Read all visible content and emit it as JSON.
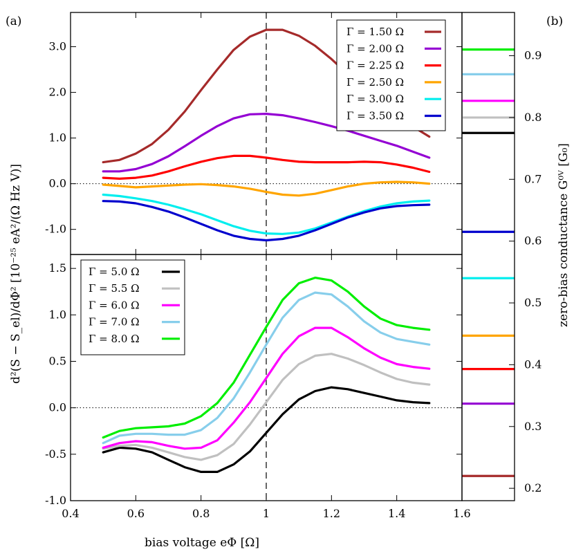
{
  "panel_labels": {
    "a": "(a)",
    "b": "(b)"
  },
  "axis_labels": {
    "x": "bias voltage eΦ [Ω]",
    "y": "d²(S − S_el)/dΦ² [10⁻²⁵ eA²/(Ω Hz V)]",
    "y2": "zero-bias conductance G⁰ⱽ [G₀]"
  },
  "chart_data": [
    {
      "type": "line",
      "name": "top-panel",
      "xlim": [
        0.4,
        1.6
      ],
      "ylim": [
        -1.55,
        3.75
      ],
      "yticks": [
        -1.0,
        0.0,
        1.0,
        2.0,
        3.0
      ],
      "ytick_labels": [
        "-1.0",
        "0.0",
        "1.0",
        "2.0",
        "3.0"
      ],
      "legend_position": "top-right",
      "vline_x": 1.0,
      "x": [
        0.5,
        0.55,
        0.6,
        0.65,
        0.7,
        0.75,
        0.8,
        0.85,
        0.9,
        0.95,
        1.0,
        1.05,
        1.1,
        1.15,
        1.2,
        1.25,
        1.3,
        1.35,
        1.4,
        1.45,
        1.5
      ],
      "series": [
        {
          "name": "Γ = 1.50 Ω",
          "color": "#a52a2a",
          "values": [
            0.47,
            0.52,
            0.66,
            0.87,
            1.18,
            1.58,
            2.05,
            2.5,
            2.93,
            3.22,
            3.37,
            3.37,
            3.24,
            3.02,
            2.73,
            2.4,
            2.05,
            1.72,
            1.45,
            1.25,
            1.03
          ]
        },
        {
          "name": "Γ = 2.00 Ω",
          "color": "#9400d3",
          "values": [
            0.27,
            0.27,
            0.32,
            0.43,
            0.6,
            0.82,
            1.05,
            1.26,
            1.43,
            1.52,
            1.53,
            1.5,
            1.43,
            1.35,
            1.26,
            1.16,
            1.05,
            0.94,
            0.83,
            0.7,
            0.57
          ]
        },
        {
          "name": "Γ = 2.25 Ω",
          "color": "#ff0000",
          "values": [
            0.13,
            0.11,
            0.13,
            0.18,
            0.27,
            0.38,
            0.48,
            0.56,
            0.61,
            0.61,
            0.57,
            0.52,
            0.48,
            0.47,
            0.47,
            0.47,
            0.48,
            0.47,
            0.42,
            0.35,
            0.26
          ]
        },
        {
          "name": "Γ = 2.50 Ω",
          "color": "#ffa500",
          "values": [
            -0.02,
            -0.05,
            -0.08,
            -0.06,
            -0.04,
            -0.02,
            -0.01,
            -0.03,
            -0.06,
            -0.11,
            -0.18,
            -0.24,
            -0.26,
            -0.22,
            -0.14,
            -0.06,
            0.0,
            0.03,
            0.04,
            0.03,
            0.0
          ]
        },
        {
          "name": "Γ = 3.00 Ω",
          "color": "#00eeee",
          "values": [
            -0.24,
            -0.27,
            -0.32,
            -0.38,
            -0.46,
            -0.56,
            -0.67,
            -0.8,
            -0.93,
            -1.03,
            -1.09,
            -1.1,
            -1.07,
            -0.98,
            -0.85,
            -0.72,
            -0.6,
            -0.5,
            -0.43,
            -0.39,
            -0.37
          ]
        },
        {
          "name": "Γ = 3.50 Ω",
          "color": "#0000cd",
          "values": [
            -0.38,
            -0.39,
            -0.43,
            -0.51,
            -0.61,
            -0.74,
            -0.88,
            -1.02,
            -1.14,
            -1.21,
            -1.24,
            -1.21,
            -1.14,
            -1.02,
            -0.88,
            -0.74,
            -0.63,
            -0.54,
            -0.49,
            -0.47,
            -0.46
          ]
        }
      ]
    },
    {
      "type": "line",
      "name": "bottom-panel",
      "xlim": [
        0.4,
        1.6
      ],
      "ylim": [
        -1.0,
        1.65
      ],
      "xticks": [
        0.4,
        0.6,
        0.8,
        1.0,
        1.2,
        1.4,
        1.6
      ],
      "xtick_labels": [
        "0.4",
        "0.6",
        "0.8",
        "1",
        "1.2",
        "1.4",
        "1.6"
      ],
      "yticks": [
        -1.0,
        -0.5,
        0.0,
        0.5,
        1.0,
        1.5
      ],
      "ytick_labels": [
        "-1.0",
        "-0.5",
        "0.0",
        "0.5",
        "1.0",
        "1.5"
      ],
      "legend_position": "top-left",
      "vline_x": 1.0,
      "x": [
        0.5,
        0.55,
        0.6,
        0.65,
        0.7,
        0.75,
        0.8,
        0.85,
        0.9,
        0.95,
        1.0,
        1.05,
        1.1,
        1.15,
        1.2,
        1.25,
        1.3,
        1.35,
        1.4,
        1.45,
        1.5
      ],
      "series": [
        {
          "name": "Γ = 5.0 Ω",
          "color": "#000000",
          "values": [
            -0.48,
            -0.43,
            -0.44,
            -0.48,
            -0.56,
            -0.64,
            -0.69,
            -0.69,
            -0.61,
            -0.47,
            -0.27,
            -0.07,
            0.09,
            0.18,
            0.22,
            0.2,
            0.16,
            0.12,
            0.08,
            0.06,
            0.05
          ]
        },
        {
          "name": "Γ = 5.5 Ω",
          "color": "#c0c0c0",
          "values": [
            -0.44,
            -0.41,
            -0.4,
            -0.43,
            -0.48,
            -0.53,
            -0.56,
            -0.51,
            -0.39,
            -0.18,
            0.06,
            0.3,
            0.47,
            0.56,
            0.58,
            0.53,
            0.46,
            0.38,
            0.31,
            0.27,
            0.25
          ]
        },
        {
          "name": "Γ = 6.0 Ω",
          "color": "#ff00ff",
          "values": [
            -0.43,
            -0.38,
            -0.36,
            -0.37,
            -0.41,
            -0.44,
            -0.43,
            -0.35,
            -0.16,
            0.06,
            0.32,
            0.58,
            0.77,
            0.86,
            0.86,
            0.76,
            0.64,
            0.54,
            0.47,
            0.44,
            0.42
          ]
        },
        {
          "name": "Γ = 7.0 Ω",
          "color": "#87ceeb",
          "values": [
            -0.38,
            -0.3,
            -0.28,
            -0.28,
            -0.29,
            -0.29,
            -0.24,
            -0.11,
            0.1,
            0.38,
            0.68,
            0.97,
            1.16,
            1.24,
            1.22,
            1.09,
            0.93,
            0.81,
            0.74,
            0.71,
            0.68
          ]
        },
        {
          "name": "Γ = 8.0 Ω",
          "color": "#00ee00",
          "values": [
            -0.32,
            -0.25,
            -0.22,
            -0.21,
            -0.2,
            -0.17,
            -0.09,
            0.05,
            0.27,
            0.57,
            0.87,
            1.16,
            1.34,
            1.4,
            1.37,
            1.25,
            1.09,
            0.96,
            0.89,
            0.86,
            0.84
          ]
        }
      ]
    },
    {
      "type": "line",
      "name": "conductance-panel",
      "ylim": [
        0.18,
        0.97
      ],
      "yticks": [
        0.2,
        0.3,
        0.4,
        0.5,
        0.6,
        0.7,
        0.8,
        0.9
      ],
      "ytick_labels": [
        "0.2",
        "0.3",
        "0.4",
        "0.5",
        "0.6",
        "0.7",
        "0.8",
        "0.9"
      ],
      "levels": [
        {
          "gamma": "Γ = 1.50 Ω",
          "value": 0.22,
          "color": "#a52a2a"
        },
        {
          "gamma": "Γ = 2.00 Ω",
          "value": 0.337,
          "color": "#9400d3"
        },
        {
          "gamma": "Γ = 2.25 Ω",
          "value": 0.393,
          "color": "#ff0000"
        },
        {
          "gamma": "Γ = 2.50 Ω",
          "value": 0.447,
          "color": "#ffa500"
        },
        {
          "gamma": "Γ = 3.00 Ω",
          "value": 0.54,
          "color": "#00eeee"
        },
        {
          "gamma": "Γ = 3.50 Ω",
          "value": 0.615,
          "color": "#0000cd"
        },
        {
          "gamma": "Γ = 5.0 Ω",
          "value": 0.775,
          "color": "#000000"
        },
        {
          "gamma": "Γ = 5.5 Ω",
          "value": 0.8,
          "color": "#c0c0c0"
        },
        {
          "gamma": "Γ = 6.0 Ω",
          "value": 0.827,
          "color": "#ff00ff"
        },
        {
          "gamma": "Γ = 7.0 Ω",
          "value": 0.87,
          "color": "#87ceeb"
        },
        {
          "gamma": "Γ = 8.0 Ω",
          "value": 0.91,
          "color": "#00ee00"
        }
      ]
    }
  ]
}
